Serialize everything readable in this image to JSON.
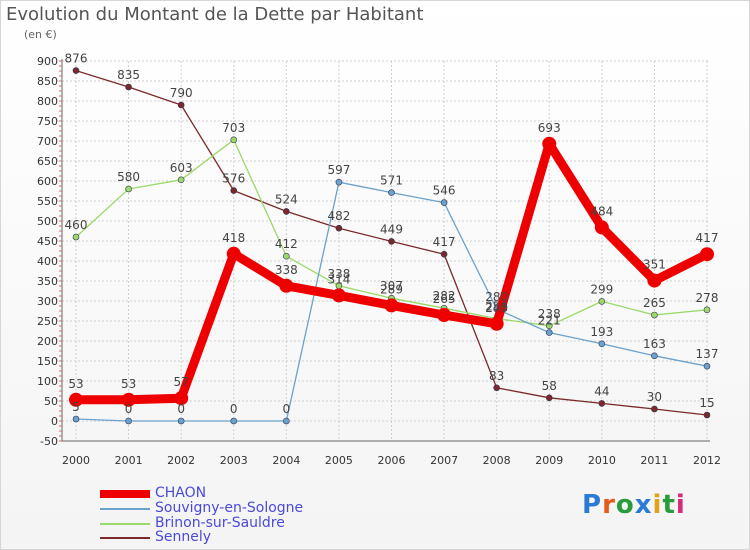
{
  "title": "Evolution du Montant de la Dette par Habitant",
  "unit_label": "(en €)",
  "brand": "Proxiti",
  "colors": {
    "grid": "#cfcfcf",
    "axis_text": "#333333",
    "value_text": "#444444",
    "legend_text": "#4a4ad8",
    "brand_letters": [
      "#2a7bd6",
      "#e35a1b",
      "#2a9b3c",
      "#2a7bd6",
      "#e3a01b",
      "#2a9b3c",
      "#d62a7b"
    ]
  },
  "chart_data": {
    "type": "line",
    "title": "Evolution du Montant de la Dette par Habitant",
    "ylabel": "(en €)",
    "xlabel": "",
    "categories": [
      "2000",
      "2001",
      "2002",
      "2003",
      "2004",
      "2005",
      "2006",
      "2007",
      "2008",
      "2009",
      "2010",
      "2011",
      "2012"
    ],
    "ylim": [
      -50,
      900
    ],
    "yticks": [
      -50,
      0,
      50,
      100,
      150,
      200,
      250,
      300,
      350,
      400,
      450,
      500,
      550,
      600,
      650,
      700,
      750,
      800,
      850,
      900
    ],
    "grid": true,
    "legend_position": "bottom-left",
    "series": [
      {
        "name": "CHAON",
        "color": "#ee0000",
        "values": [
          53,
          53,
          57,
          418,
          338,
          314,
          289,
          265,
          243,
          693,
          484,
          351,
          417
        ]
      },
      {
        "name": "Souvigny-en-Sologne",
        "color": "#6aa2cc",
        "values": [
          5,
          0,
          0,
          0,
          0,
          597,
          571,
          546,
          280,
          221,
          193,
          163,
          137
        ]
      },
      {
        "name": "Brinon-sur-Sauldre",
        "color": "#9ad96a",
        "values": [
          460,
          580,
          603,
          703,
          412,
          338,
          307,
          282,
          256,
          238,
          299,
          265,
          278
        ]
      },
      {
        "name": "Sennely",
        "color": "#7a2a2a",
        "values": [
          876,
          835,
          790,
          576,
          524,
          482,
          449,
          417,
          83,
          58,
          44,
          30,
          15
        ]
      }
    ]
  }
}
